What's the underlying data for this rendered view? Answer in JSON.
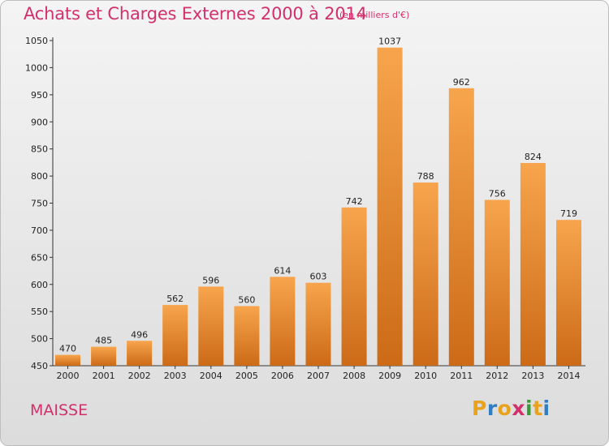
{
  "chart_data": {
    "type": "bar",
    "title": "Achats et Charges Externes 2000 à 2014",
    "unit_note": "(en milliers d'€)",
    "categories": [
      "2000",
      "2001",
      "2002",
      "2003",
      "2004",
      "2005",
      "2006",
      "2007",
      "2008",
      "2009",
      "2010",
      "2011",
      "2012",
      "2013",
      "2014"
    ],
    "values": [
      470,
      485,
      496,
      562,
      596,
      560,
      614,
      603,
      742,
      1037,
      788,
      962,
      756,
      824,
      719
    ],
    "ylim": [
      450,
      1050
    ],
    "yticks": [
      450,
      500,
      550,
      600,
      650,
      700,
      750,
      800,
      850,
      900,
      950,
      1000,
      1050
    ],
    "grid": false,
    "bar_color_light": "#f7a54d",
    "bar_color_dark": "#cc6a17"
  },
  "location": "MAISSE",
  "logo": {
    "letters": [
      "P",
      "r",
      "o",
      "x",
      "i",
      "t",
      "i"
    ],
    "colors": [
      "#e8a21b",
      "#2f7ec4",
      "#e8a21b",
      "#d2306c",
      "#3a9a3a",
      "#e8a21b",
      "#2f7ec4"
    ]
  }
}
